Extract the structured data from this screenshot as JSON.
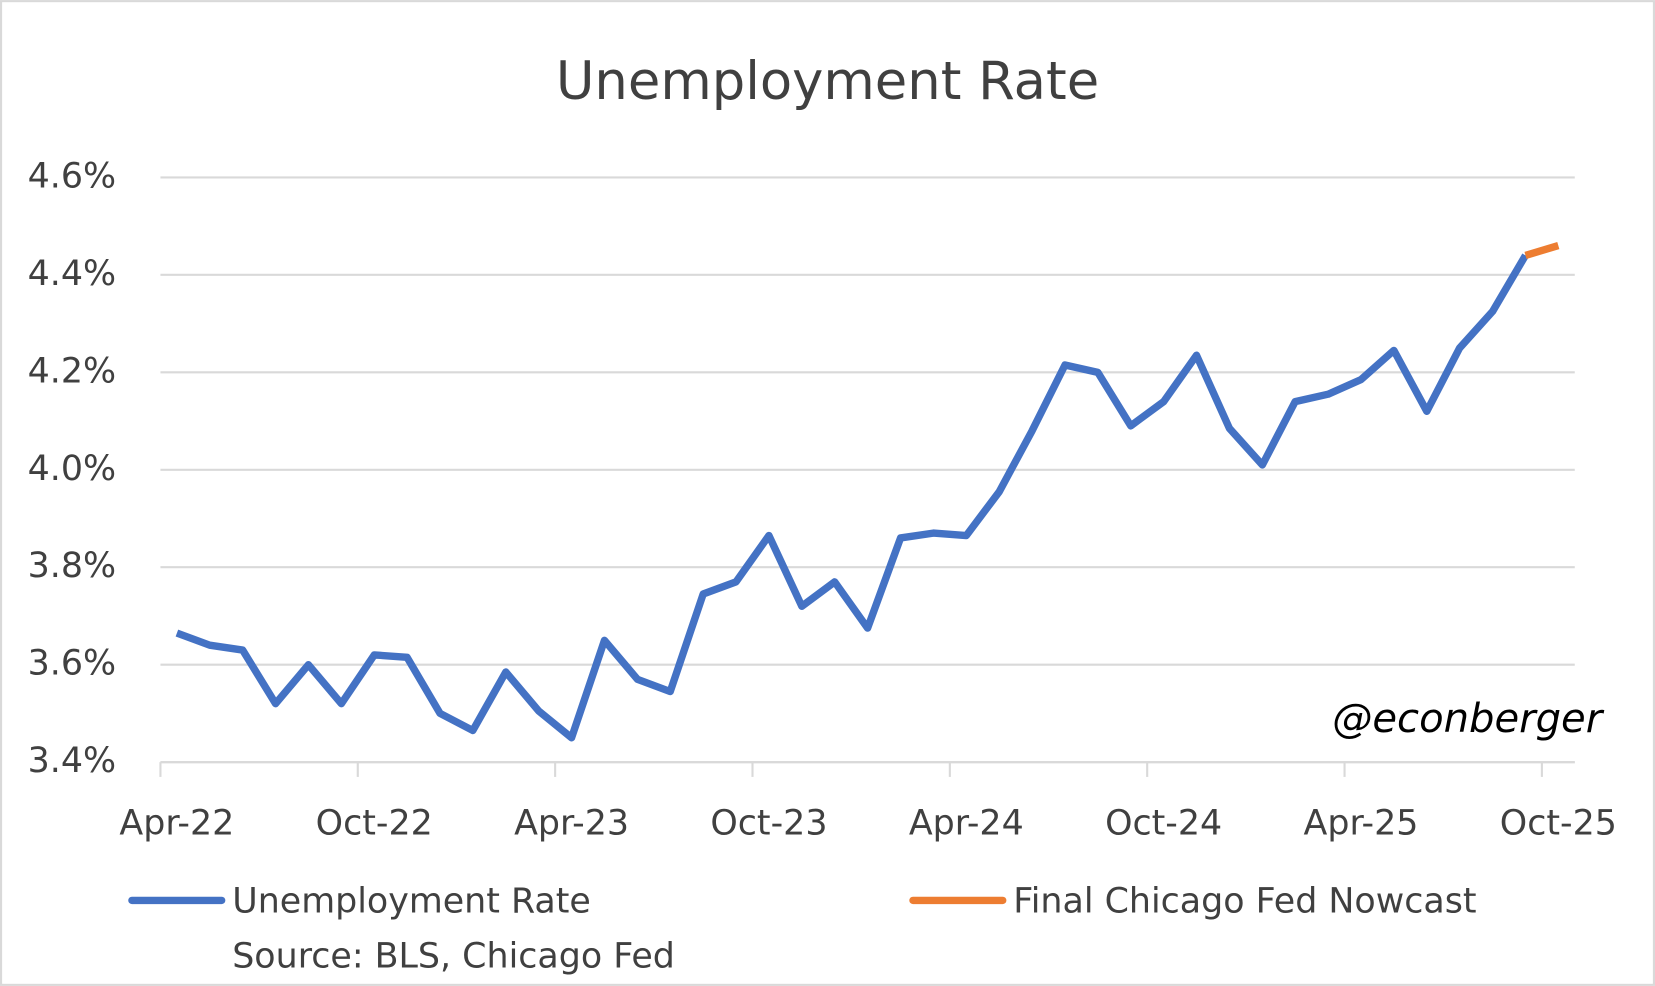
{
  "chart_data": {
    "type": "line",
    "title": "Unemployment Rate",
    "categories": [
      "Apr-22",
      null,
      null,
      null,
      null,
      null,
      "Oct-22",
      null,
      null,
      null,
      null,
      null,
      "Apr-23",
      null,
      null,
      null,
      null,
      null,
      "Oct-23",
      null,
      null,
      null,
      null,
      null,
      "Apr-24",
      null,
      null,
      null,
      null,
      null,
      "Oct-24",
      null,
      null,
      null,
      null,
      null,
      "Apr-25",
      null,
      null,
      null,
      null,
      null,
      "Oct-25"
    ],
    "series": [
      {
        "name": "Unemployment Rate",
        "color": "#4472c4",
        "values": [
          3.665,
          3.64,
          3.63,
          3.52,
          3.6,
          3.52,
          3.62,
          3.615,
          3.5,
          3.465,
          3.585,
          3.505,
          3.45,
          3.65,
          3.57,
          3.545,
          3.745,
          3.77,
          3.865,
          3.72,
          3.77,
          3.675,
          3.86,
          3.87,
          3.865,
          3.955,
          4.08,
          4.215,
          4.2,
          4.09,
          4.14,
          4.235,
          4.085,
          4.01,
          4.14,
          4.155,
          4.185,
          4.245,
          4.12,
          4.25,
          4.325,
          4.44,
          null
        ]
      },
      {
        "name": "Final Chicago Fed Nowcast",
        "color": "#ed7d31",
        "values": [
          null,
          null,
          null,
          null,
          null,
          null,
          null,
          null,
          null,
          null,
          null,
          null,
          null,
          null,
          null,
          null,
          null,
          null,
          null,
          null,
          null,
          null,
          null,
          null,
          null,
          null,
          null,
          null,
          null,
          null,
          null,
          null,
          null,
          null,
          null,
          null,
          null,
          null,
          null,
          null,
          null,
          4.44,
          4.46
        ]
      }
    ],
    "ylim": [
      3.4,
      4.6
    ],
    "yticks": [
      {
        "value": 3.4,
        "label": "3.4%"
      },
      {
        "value": 3.6,
        "label": "3.6%"
      },
      {
        "value": 3.8,
        "label": "3.8%"
      },
      {
        "value": 4.0,
        "label": "4.0%"
      },
      {
        "value": 4.2,
        "label": "4.2%"
      },
      {
        "value": 4.4,
        "label": "4.4%"
      },
      {
        "value": 4.6,
        "label": "4.6%"
      }
    ],
    "grid": true,
    "annotation": "@econberger",
    "source": "Source: BLS, Chicago Fed"
  }
}
